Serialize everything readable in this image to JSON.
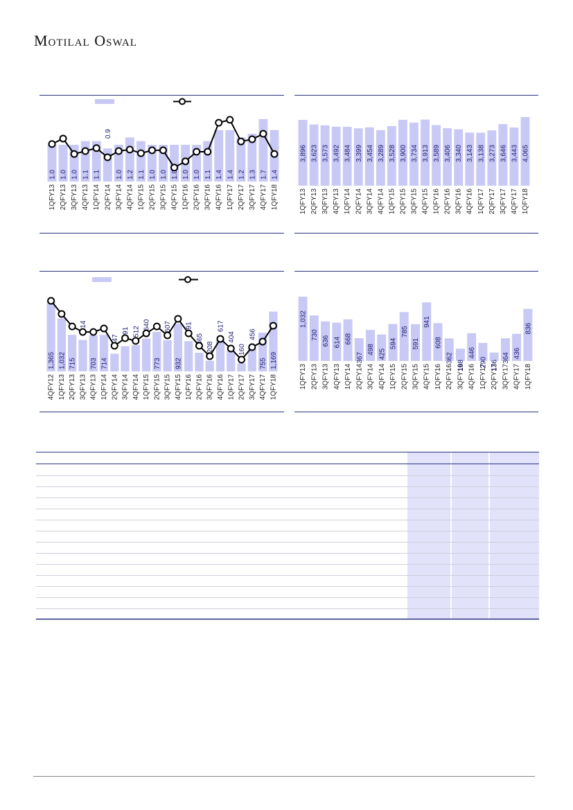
{
  "header": {
    "brand": "Motilal Oswal"
  },
  "chart_data": [
    {
      "type": "bar_line",
      "categories": [
        "1QFY13",
        "2QFY13",
        "3QFY13",
        "4QFY13",
        "1QFY14",
        "2QFY14",
        "3QFY14",
        "4QFY14",
        "1QFY15",
        "2QFY15",
        "3QFY15",
        "4QFY15",
        "1QFY16",
        "2QFY16",
        "3QFY16",
        "4QFY16",
        "1QFY17",
        "2QFY17",
        "3QFY17",
        "4QFY17",
        "1QFY18"
      ],
      "series": [
        {
          "color": "#c9c9f5",
          "values": [
            1.0,
            1.0,
            1.0,
            1.1,
            1.1,
            0.9,
            1.0,
            1.2,
            1.1,
            1.0,
            1.0,
            1.0,
            1.0,
            1.0,
            1.1,
            1.4,
            1.4,
            1.2,
            1.3,
            1.7,
            1.4
          ],
          "value_labels": [
            "1.0",
            "1.0",
            "1.0",
            "1.1",
            "1.1",
            "0.9",
            "1.0",
            "1.2",
            "1.1",
            "1.0",
            "1.0",
            "1.0",
            "1.0",
            "1.0",
            "1.1",
            "1.4",
            "1.4",
            "1.2",
            "1.3",
            "1.7",
            "1.4"
          ]
        },
        {
          "color": "#000000",
          "axis": "y2",
          "values": [
            1.02,
            1.17,
            0.75,
            0.83,
            0.91,
            0.66,
            0.83,
            0.87,
            0.77,
            0.85,
            0.85,
            0.38,
            0.55,
            0.81,
            0.81,
            1.6,
            1.68,
            1.09,
            1.15,
            1.3,
            0.75
          ]
        }
      ],
      "ylim": [
        0,
        2.3
      ],
      "y2lim": [
        0,
        2.3
      ]
    },
    {
      "type": "bar",
      "categories": [
        "1QFY13",
        "2QFY13",
        "3QFY13",
        "4QFY13",
        "1QFY14",
        "2QFY14",
        "3QFY14",
        "4QFY14",
        "1QFY15",
        "2QFY15",
        "3QFY15",
        "4QFY15",
        "1QFY16",
        "2QFY16",
        "3QFY16",
        "4QFY16",
        "1QFY17",
        "2QFY17",
        "3QFY17",
        "4QFY17",
        "1QFY18"
      ],
      "series": [
        {
          "color": "#c9c9f5",
          "values": [
            3896,
            3623,
            3573,
            3492,
            3484,
            3399,
            3454,
            3289,
            3528,
            3900,
            3734,
            3913,
            3589,
            3406,
            3340,
            3143,
            3138,
            3273,
            3646,
            3443,
            4065
          ],
          "value_labels": [
            "3,896",
            "3,623",
            "3,573",
            "3,492",
            "3,484",
            "3,399",
            "3,454",
            "3,289",
            "3,528",
            "3,900",
            "3,734",
            "3,913",
            "3,589",
            "3,406",
            "3,340",
            "3,143",
            "3,138",
            "3,273",
            "3,646",
            "3,443",
            "4,065"
          ]
        }
      ],
      "ylim": [
        0,
        5250
      ]
    },
    {
      "type": "bar_line",
      "categories": [
        "4QFY12",
        "1QFY13",
        "2QFY13",
        "3QFY13",
        "4QFY13",
        "1QFY14",
        "2QFY14",
        "3QFY14",
        "4QFY14",
        "1QFY15",
        "2QFY15",
        "3QFY15",
        "4QFY15",
        "1QFY16",
        "2QFY16",
        "3QFY16",
        "4QFY16",
        "1QFY17",
        "2QFY17",
        "3QFY17",
        "4QFY17",
        "1QFY18"
      ],
      "series": [
        {
          "color": "#c9c9f5",
          "values": [
            1365,
            1032,
            715,
            614,
            703,
            714,
            347,
            491,
            512,
            640,
            773,
            607,
            932,
            591,
            365,
            208,
            617,
            404,
            160,
            456,
            755,
            1169
          ],
          "value_labels": [
            "1,365",
            "1,032",
            "715",
            "614",
            "703",
            "714",
            "347",
            "491",
            "512",
            "640",
            "773",
            "607",
            "932",
            "591",
            "365",
            "208",
            "617",
            "404",
            "160",
            "456",
            "755",
            "1,169"
          ]
        },
        {
          "color": "#000000",
          "axis": "y2",
          "values": [
            1378,
            1122,
            878,
            770,
            770,
            838,
            500,
            649,
            595,
            743,
            878,
            703,
            1027,
            743,
            500,
            297,
            635,
            446,
            230,
            473,
            581,
            892
          ]
        }
      ],
      "ylim": [
        0,
        1840
      ],
      "y2lim": [
        0,
        1840
      ]
    },
    {
      "type": "bar",
      "categories": [
        "1QFY13",
        "2QFY13",
        "3QFY13",
        "4QFY13",
        "1QFY14",
        "2QFY14",
        "3QFY14",
        "4QFY14",
        "1QFY15",
        "2QFY15",
        "3QFY15",
        "4QFY15",
        "1QFY16",
        "2QFY16",
        "3QFY16",
        "4QFY16",
        "1QFY17",
        "2QFY17",
        "3QFY17",
        "4QFY17",
        "1QFY18"
      ],
      "series": [
        {
          "color": "#c9c9f5",
          "values": [
            1032,
            730,
            636,
            614,
            668,
            367,
            498,
            425,
            594,
            785,
            591,
            941,
            608,
            362,
            198,
            446,
            290,
            136,
            364,
            436,
            836
          ],
          "value_labels": [
            "1,032",
            "730",
            "636",
            "614",
            "668",
            "367",
            "498",
            "425",
            "594",
            "785",
            "591",
            "941",
            "608",
            "362",
            "198",
            "446",
            "290",
            "136",
            "364",
            "436",
            "836"
          ]
        }
      ],
      "ylim": [
        0,
        1345
      ]
    }
  ]
}
